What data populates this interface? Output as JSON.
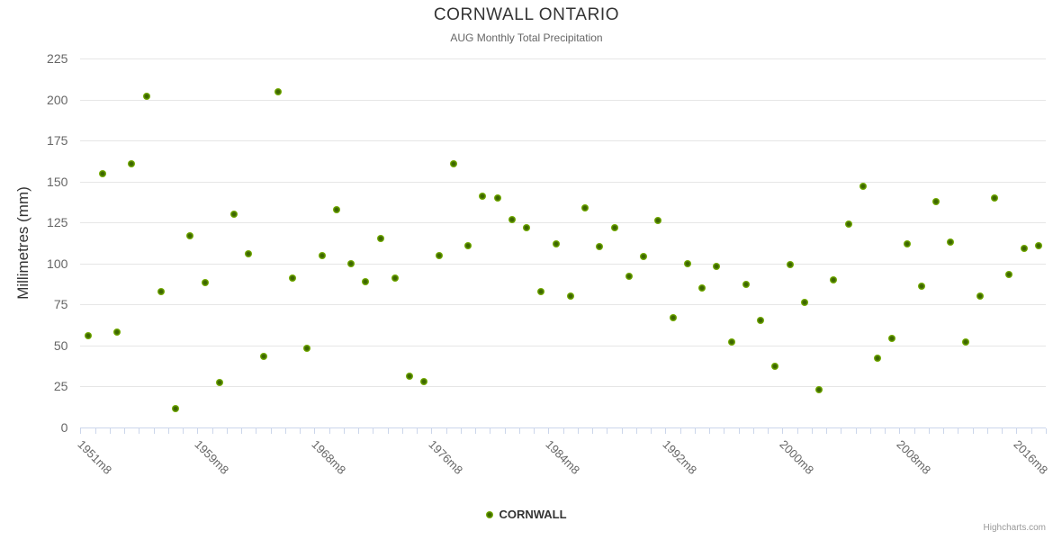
{
  "chart_data": {
    "type": "scatter",
    "title": "CORNWALL ONTARIO",
    "subtitle": "AUG Monthly Total Precipitation",
    "xlabel": "",
    "ylabel": "Millimetres (mm)",
    "ylim": [
      0,
      225
    ],
    "y_ticks": [
      0,
      25,
      50,
      75,
      100,
      125,
      150,
      175,
      200,
      225
    ],
    "grid": true,
    "legend_position": "bottom-center",
    "x_axis": {
      "n_categories": 66,
      "tick_labels": [
        "1951m8",
        "1959m8",
        "1968m8",
        "1976m8",
        "1984m8",
        "1992m8",
        "2000m8",
        "2008m8",
        "2016m8"
      ],
      "tick_label_positions": [
        0,
        8,
        16,
        24,
        32,
        40,
        48,
        56,
        64
      ]
    },
    "series": [
      {
        "name": "CORNWALL",
        "values": [
          56,
          155,
          58,
          161,
          202,
          83,
          11,
          117,
          88,
          27,
          130,
          106,
          43,
          205,
          91,
          48,
          105,
          133,
          100,
          89,
          115,
          91,
          31,
          28,
          105,
          161,
          111,
          141,
          140,
          127,
          122,
          83,
          112,
          80,
          134,
          110,
          122,
          92,
          104,
          126,
          67,
          100,
          85,
          98,
          52,
          87,
          65,
          37,
          99,
          76,
          23,
          90,
          124,
          147,
          42,
          54,
          112,
          86,
          138,
          113,
          52,
          80,
          140,
          93,
          109,
          111
        ]
      }
    ]
  },
  "legend": {
    "items": [
      {
        "label": "CORNWALL"
      }
    ]
  },
  "credits": {
    "label": "Highcharts.com"
  },
  "colors": {
    "title": "#333333",
    "subtitle": "#666666",
    "axis_label": "#666666",
    "grid_line": "#e6e6e6",
    "axis_line": "#ccd6eb",
    "marker_outer": "#7ab400",
    "marker_inner": "#3c6600",
    "credits": "#999999"
  }
}
